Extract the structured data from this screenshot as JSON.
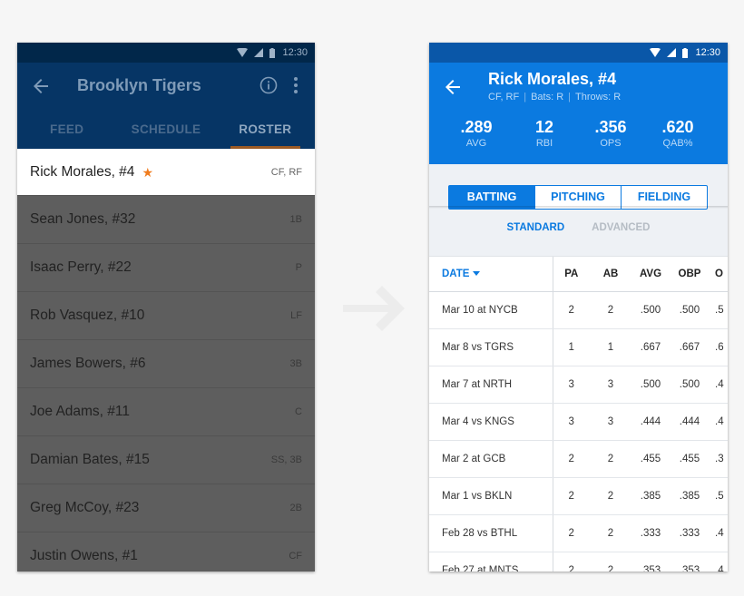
{
  "left": {
    "status_time": "12:30",
    "team_title": "Brooklyn Tigers",
    "tabs": [
      {
        "label": "FEED"
      },
      {
        "label": "SCHEDULE"
      },
      {
        "label": "ROSTER"
      }
    ],
    "roster": [
      {
        "name": "Rick Morales, #4",
        "pos": "CF, RF"
      },
      {
        "name": "Sean Jones, #32",
        "pos": "1B"
      },
      {
        "name": "Isaac Perry, #22",
        "pos": "P"
      },
      {
        "name": "Rob Vasquez, #10",
        "pos": "LF"
      },
      {
        "name": "James Bowers, #6",
        "pos": "3B"
      },
      {
        "name": "Joe Adams, #11",
        "pos": "C"
      },
      {
        "name": "Damian Bates, #15",
        "pos": "SS, 3B"
      },
      {
        "name": "Greg McCoy, #23",
        "pos": "2B"
      },
      {
        "name": "Justin Owens, #1",
        "pos": "CF"
      }
    ]
  },
  "right": {
    "status_time": "12:30",
    "player_name": "Rick Morales, #4",
    "positions": "CF, RF",
    "bats": "Bats: R",
    "throws": "Throws: R",
    "stats": [
      {
        "value": ".289",
        "label": "AVG"
      },
      {
        "value": "12",
        "label": "RBI"
      },
      {
        "value": ".356",
        "label": "OPS"
      },
      {
        "value": ".620",
        "label": "QAB%"
      }
    ],
    "segments": [
      "BATTING",
      "PITCHING",
      "FIELDING"
    ],
    "subtabs": [
      "STANDARD",
      "ADVANCED"
    ],
    "columns": [
      "DATE",
      "PA",
      "AB",
      "AVG",
      "OBP",
      "O"
    ],
    "games": [
      {
        "date": "Mar 10  at NYCB",
        "pa": "2",
        "ab": "2",
        "avg": ".500",
        "obp": ".500",
        "o": ".5"
      },
      {
        "date": "Mar 8  vs TGRS",
        "pa": "1",
        "ab": "1",
        "avg": ".667",
        "obp": ".667",
        "o": ".6"
      },
      {
        "date": "Mar 7  at NRTH",
        "pa": "3",
        "ab": "3",
        "avg": ".500",
        "obp": ".500",
        "o": ".4"
      },
      {
        "date": "Mar 4  vs KNGS",
        "pa": "3",
        "ab": "3",
        "avg": ".444",
        "obp": ".444",
        "o": ".4"
      },
      {
        "date": "Mar 2  at GCB",
        "pa": "2",
        "ab": "2",
        "avg": ".455",
        "obp": ".455",
        "o": ".3"
      },
      {
        "date": "Mar 1  vs BKLN",
        "pa": "2",
        "ab": "2",
        "avg": ".385",
        "obp": ".385",
        "o": ".5"
      },
      {
        "date": "Feb 28  vs BTHL",
        "pa": "2",
        "ab": "2",
        "avg": ".333",
        "obp": ".333",
        "o": ".4"
      },
      {
        "date": "Feb 27  at MNTS",
        "pa": "2",
        "ab": "2",
        "avg": ".353",
        "obp": ".353",
        "o": ".4"
      }
    ]
  }
}
